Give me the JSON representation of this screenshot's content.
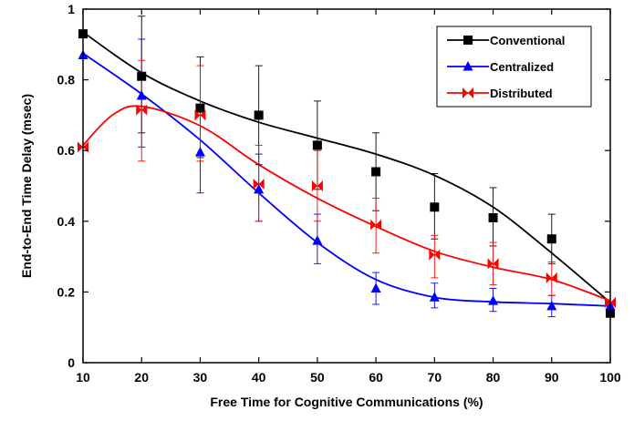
{
  "chart_data": {
    "type": "scatter",
    "xlabel": "Free Time for Cognitive Communications (%)",
    "ylabel": "End-to-End Time Delay (msec)",
    "xlim": [
      10,
      100
    ],
    "ylim": [
      0,
      1
    ],
    "xticks": [
      10,
      20,
      30,
      40,
      50,
      60,
      70,
      80,
      90,
      100
    ],
    "yticks": [
      0,
      0.2,
      0.4,
      0.6,
      0.8,
      1
    ],
    "ytick_labels": [
      "0",
      "0.2",
      "0.4",
      "0.6",
      "0.8",
      "1"
    ],
    "grid": false,
    "legend_position": "top-right",
    "series": [
      {
        "name": "Conventional",
        "color": "#000000",
        "marker": "square",
        "x": [
          10,
          20,
          30,
          40,
          50,
          60,
          70,
          80,
          90,
          100
        ],
        "y": [
          0.93,
          0.81,
          0.72,
          0.7,
          0.615,
          0.54,
          0.44,
          0.41,
          0.35,
          0.14
        ],
        "err_high": [
          0.93,
          0.98,
          0.865,
          0.84,
          0.74,
          0.65,
          0.535,
          0.495,
          0.42,
          0.14
        ],
        "err_low": [
          0.93,
          0.65,
          0.58,
          0.56,
          0.49,
          0.43,
          0.35,
          0.33,
          0.28,
          0.14
        ],
        "fit": [
          [
            10,
            0.935
          ],
          [
            20,
            0.82
          ],
          [
            30,
            0.74
          ],
          [
            40,
            0.68
          ],
          [
            50,
            0.635
          ],
          [
            60,
            0.59
          ],
          [
            70,
            0.53
          ],
          [
            80,
            0.44
          ],
          [
            90,
            0.31
          ],
          [
            100,
            0.17
          ]
        ]
      },
      {
        "name": "Centralized",
        "color": "#0000ff",
        "marker": "triangle",
        "x": [
          10,
          20,
          30,
          40,
          50,
          60,
          70,
          80,
          90,
          100
        ],
        "y": [
          0.87,
          0.755,
          0.595,
          0.49,
          0.345,
          0.21,
          0.185,
          0.175,
          0.16,
          0.16
        ],
        "err_high": [
          0.87,
          0.915,
          0.71,
          0.59,
          0.42,
          0.255,
          0.225,
          0.21,
          0.19,
          0.16
        ],
        "err_low": [
          0.87,
          0.61,
          0.48,
          0.4,
          0.28,
          0.165,
          0.155,
          0.145,
          0.13,
          0.16
        ],
        "fit": [
          [
            10,
            0.875
          ],
          [
            20,
            0.76
          ],
          [
            30,
            0.63
          ],
          [
            40,
            0.48
          ],
          [
            50,
            0.34
          ],
          [
            60,
            0.235
          ],
          [
            70,
            0.185
          ],
          [
            80,
            0.172
          ],
          [
            90,
            0.167
          ],
          [
            100,
            0.16
          ]
        ]
      },
      {
        "name": "Distributed",
        "color": "#ff0000",
        "marker": "bowtie",
        "x": [
          10,
          20,
          30,
          40,
          50,
          60,
          70,
          80,
          90,
          100
        ],
        "y": [
          0.61,
          0.715,
          0.7,
          0.505,
          0.5,
          0.39,
          0.305,
          0.28,
          0.24,
          0.17
        ],
        "err_high": [
          0.61,
          0.855,
          0.84,
          0.615,
          0.6,
          0.465,
          0.36,
          0.34,
          0.285,
          0.17
        ],
        "err_low": [
          0.61,
          0.57,
          0.57,
          0.4,
          0.4,
          0.31,
          0.24,
          0.22,
          0.19,
          0.17
        ],
        "fit": [
          [
            10,
            0.615
          ],
          [
            15,
            0.7
          ],
          [
            20,
            0.725
          ],
          [
            30,
            0.67
          ],
          [
            40,
            0.56
          ],
          [
            50,
            0.465
          ],
          [
            60,
            0.385
          ],
          [
            70,
            0.315
          ],
          [
            80,
            0.27
          ],
          [
            90,
            0.235
          ],
          [
            100,
            0.175
          ]
        ]
      }
    ]
  }
}
